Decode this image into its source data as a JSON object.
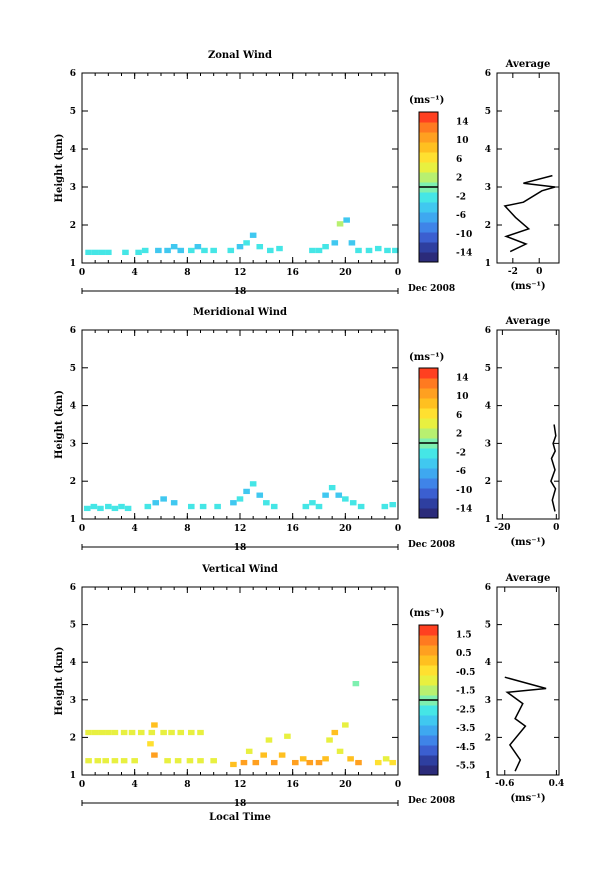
{
  "figure": {
    "date_label": "Dec 2008",
    "day_label": "18",
    "xlabel_bottom": "Local Time",
    "colors": [
      "#2b2b7a",
      "#2e3fa0",
      "#3b5fd0",
      "#3f84e8",
      "#3ea8f0",
      "#40c8f0",
      "#45e6e6",
      "#7ef0b0",
      "#b8f070",
      "#e8f040",
      "#ffe030",
      "#ffc020",
      "#ffa020",
      "#ff7a20",
      "#ff4020"
    ]
  },
  "chart_data": [
    {
      "type": "heatmap",
      "title": "Zonal Wind",
      "ylabel": "Height (km)",
      "xlim": [
        0,
        24
      ],
      "ylim": [
        1,
        6
      ],
      "x_ticks": [
        "0",
        "4",
        "8",
        "12",
        "16",
        "20",
        "0"
      ],
      "y_ticks": [
        "1",
        "2",
        "3",
        "4",
        "5",
        "6"
      ],
      "colorbar": {
        "unit": "(ms⁻¹)",
        "labels": [
          "14",
          "10",
          "6",
          "2",
          "-2",
          "-6",
          "-10",
          "-14"
        ],
        "range": [
          -16,
          16
        ]
      },
      "cells": [
        [
          0.5,
          1.25,
          -3
        ],
        [
          1,
          1.25,
          -3
        ],
        [
          1.5,
          1.25,
          -3
        ],
        [
          2,
          1.25,
          -3
        ],
        [
          3.3,
          1.25,
          -3
        ],
        [
          4.3,
          1.25,
          -3
        ],
        [
          4.8,
          1.3,
          -3
        ],
        [
          5.8,
          1.3,
          -4
        ],
        [
          6.5,
          1.3,
          -4
        ],
        [
          7,
          1.4,
          -5
        ],
        [
          7.5,
          1.3,
          -4
        ],
        [
          8.3,
          1.3,
          -3
        ],
        [
          8.8,
          1.4,
          -4
        ],
        [
          9.3,
          1.3,
          -3
        ],
        [
          10,
          1.3,
          -3
        ],
        [
          11.3,
          1.3,
          -3
        ],
        [
          12,
          1.4,
          -4
        ],
        [
          12.5,
          1.5,
          -3
        ],
        [
          13,
          1.7,
          -4
        ],
        [
          13.5,
          1.4,
          -3
        ],
        [
          14.3,
          1.3,
          -3
        ],
        [
          15,
          1.35,
          -3
        ],
        [
          17.5,
          1.3,
          -3
        ],
        [
          18,
          1.3,
          -3
        ],
        [
          18.5,
          1.4,
          -3
        ],
        [
          19.2,
          1.5,
          -4
        ],
        [
          19.6,
          2.0,
          2
        ],
        [
          20.1,
          2.1,
          -5
        ],
        [
          20.5,
          1.5,
          -4
        ],
        [
          21,
          1.3,
          -3
        ],
        [
          21.8,
          1.3,
          -3
        ],
        [
          22.5,
          1.35,
          -3
        ],
        [
          23.2,
          1.3,
          -3
        ],
        [
          23.8,
          1.3,
          -3
        ]
      ],
      "average": {
        "title": "Average",
        "xlabel": "(ms⁻¹)",
        "xlim": [
          -3.2,
          1.5
        ],
        "x_ticks": [
          "-2",
          "0"
        ],
        "profile_x": [
          -2.2,
          -1.0,
          -2.5,
          -0.8,
          -1.8,
          -2.6,
          -1.2,
          0.2,
          1.2,
          -1.2,
          1.0
        ],
        "profile_y": [
          1.3,
          1.5,
          1.7,
          1.9,
          2.2,
          2.5,
          2.6,
          2.9,
          3.0,
          3.1,
          3.3
        ]
      }
    },
    {
      "type": "heatmap",
      "title": "Meridional Wind",
      "ylabel": "Height (km)",
      "xlim": [
        0,
        24
      ],
      "ylim": [
        1,
        6
      ],
      "x_ticks": [
        "0",
        "4",
        "8",
        "12",
        "16",
        "20",
        "0"
      ],
      "y_ticks": [
        "1",
        "2",
        "3",
        "4",
        "5",
        "6"
      ],
      "colorbar": {
        "unit": "(ms⁻¹)",
        "labels": [
          "14",
          "10",
          "6",
          "2",
          "-2",
          "-6",
          "-10",
          "-14"
        ],
        "range": [
          -16,
          16
        ]
      },
      "cells": [
        [
          0.4,
          1.25,
          -3
        ],
        [
          0.9,
          1.3,
          -3
        ],
        [
          1.4,
          1.25,
          -3
        ],
        [
          2,
          1.3,
          -3
        ],
        [
          2.5,
          1.25,
          -3
        ],
        [
          3,
          1.3,
          -3
        ],
        [
          3.5,
          1.25,
          -3
        ],
        [
          5,
          1.3,
          -3
        ],
        [
          5.6,
          1.4,
          -4
        ],
        [
          6.2,
          1.5,
          -4
        ],
        [
          7,
          1.4,
          -4
        ],
        [
          8.3,
          1.3,
          -3
        ],
        [
          9.2,
          1.3,
          -3
        ],
        [
          10.3,
          1.3,
          -3
        ],
        [
          11.5,
          1.4,
          -4
        ],
        [
          12,
          1.5,
          -3
        ],
        [
          12.5,
          1.7,
          -4
        ],
        [
          13,
          1.9,
          -3
        ],
        [
          13.5,
          1.6,
          -4
        ],
        [
          14,
          1.4,
          -3
        ],
        [
          14.6,
          1.3,
          -3
        ],
        [
          17,
          1.3,
          -3
        ],
        [
          17.5,
          1.4,
          -3
        ],
        [
          18,
          1.3,
          -3
        ],
        [
          18.5,
          1.6,
          -4
        ],
        [
          19,
          1.8,
          -3
        ],
        [
          19.5,
          1.6,
          -4
        ],
        [
          20,
          1.5,
          -3
        ],
        [
          20.6,
          1.4,
          -3
        ],
        [
          21.2,
          1.3,
          -3
        ],
        [
          23,
          1.3,
          -3
        ],
        [
          23.6,
          1.35,
          -3
        ]
      ],
      "average": {
        "title": "Average",
        "xlabel": "(ms⁻¹)",
        "xlim": [
          -22,
          1
        ],
        "x_ticks": [
          "-20",
          "0"
        ],
        "profile_x": [
          -0.5,
          -1.5,
          -0.3,
          -2.0,
          -0.5,
          -1.8,
          -0.4,
          -1.2,
          -0.2,
          -0.8
        ],
        "profile_y": [
          1.2,
          1.5,
          1.8,
          2.0,
          2.3,
          2.6,
          2.8,
          3.0,
          3.2,
          3.5
        ]
      }
    },
    {
      "type": "heatmap",
      "title": "Vertical Wind",
      "ylabel": "Height (km)",
      "xlabel": "Local Time",
      "xlim": [
        0,
        24
      ],
      "ylim": [
        1,
        6
      ],
      "x_ticks": [
        "0",
        "4",
        "8",
        "12",
        "16",
        "20",
        "0"
      ],
      "y_ticks": [
        "1",
        "2",
        "3",
        "4",
        "5",
        "6"
      ],
      "colorbar": {
        "unit": "(ms⁻¹)",
        "labels": [
          "1.5",
          "0.5",
          "-0.5",
          "-1.5",
          "-2.5",
          "-3.5",
          "-4.5",
          "-5.5"
        ],
        "range": [
          -6,
          2
        ]
      },
      "cells": [
        [
          0.5,
          2.1,
          -1
        ],
        [
          1,
          2.1,
          -1
        ],
        [
          1.5,
          2.1,
          -1
        ],
        [
          2,
          2.1,
          -1
        ],
        [
          2.5,
          2.1,
          -1
        ],
        [
          3.2,
          2.1,
          -1
        ],
        [
          3.8,
          2.1,
          -1
        ],
        [
          4.5,
          2.1,
          -1
        ],
        [
          5.3,
          2.1,
          -1
        ],
        [
          5.5,
          2.3,
          0
        ],
        [
          5.2,
          1.8,
          -0.5
        ],
        [
          6.2,
          2.1,
          -1
        ],
        [
          6.8,
          2.1,
          -1
        ],
        [
          7.5,
          2.1,
          -1
        ],
        [
          8.3,
          2.1,
          -1
        ],
        [
          9,
          2.1,
          -1
        ],
        [
          0.5,
          1.35,
          -1
        ],
        [
          1.2,
          1.35,
          -1
        ],
        [
          1.8,
          1.35,
          -1
        ],
        [
          2.5,
          1.35,
          -1
        ],
        [
          3.2,
          1.35,
          -1
        ],
        [
          4,
          1.35,
          -1
        ],
        [
          5.5,
          1.5,
          0.5
        ],
        [
          6.5,
          1.35,
          -1
        ],
        [
          7.3,
          1.35,
          -1
        ],
        [
          8.2,
          1.35,
          -1
        ],
        [
          9,
          1.35,
          -1
        ],
        [
          10,
          1.35,
          -1
        ],
        [
          11.5,
          1.25,
          0
        ],
        [
          12.3,
          1.3,
          0.5
        ],
        [
          12.7,
          1.6,
          -1
        ],
        [
          13.2,
          1.3,
          0.5
        ],
        [
          13.8,
          1.5,
          0
        ],
        [
          14.2,
          1.9,
          -1
        ],
        [
          14.6,
          1.3,
          0.5
        ],
        [
          15.2,
          1.5,
          0
        ],
        [
          15.6,
          2.0,
          -1
        ],
        [
          16.2,
          1.3,
          0.5
        ],
        [
          16.8,
          1.4,
          0
        ],
        [
          17.3,
          1.3,
          0.5
        ],
        [
          18,
          1.3,
          0.5
        ],
        [
          18.5,
          1.4,
          0
        ],
        [
          18.8,
          1.9,
          -1
        ],
        [
          19.2,
          2.1,
          0
        ],
        [
          19.6,
          1.6,
          -1
        ],
        [
          20,
          2.3,
          -1
        ],
        [
          20.4,
          1.4,
          0
        ],
        [
          20.8,
          3.4,
          -2
        ],
        [
          21,
          1.3,
          0.5
        ],
        [
          22.5,
          1.3,
          -0.5
        ],
        [
          23.1,
          1.4,
          -1
        ],
        [
          23.6,
          1.3,
          -0.5
        ]
      ],
      "average": {
        "title": "Average",
        "xlabel": "(ms⁻¹)",
        "xlim": [
          -0.75,
          0.45
        ],
        "x_ticks": [
          "-0.6",
          "0.4"
        ],
        "profile_x": [
          -0.4,
          -0.3,
          -0.5,
          -0.2,
          -0.4,
          -0.25,
          -0.55,
          0.2,
          -0.6
        ],
        "profile_y": [
          1.1,
          1.4,
          1.8,
          2.3,
          2.5,
          2.9,
          3.2,
          3.3,
          3.6
        ]
      }
    }
  ]
}
